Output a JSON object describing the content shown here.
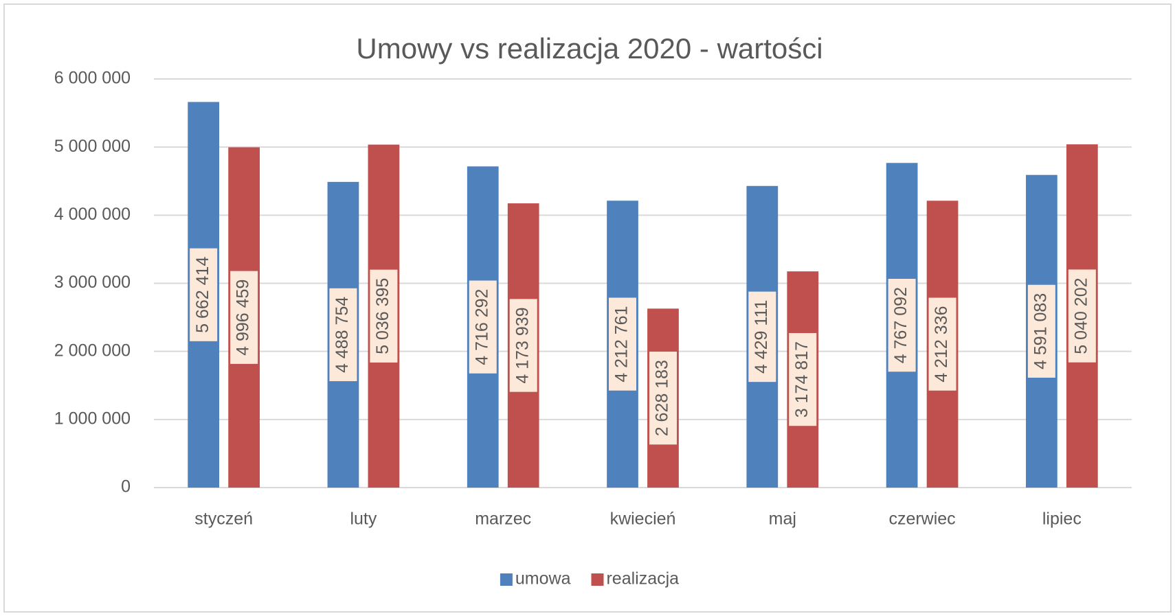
{
  "chart_data": {
    "type": "bar",
    "title": "Umowy vs realizacja 2020 - wartości",
    "categories": [
      "styczeń",
      "luty",
      "marzec",
      "kwiecień",
      "maj",
      "czerwiec",
      "lipiec"
    ],
    "series": [
      {
        "name": "umowa",
        "color": "#4f81bd",
        "values": [
          5662414,
          4488754,
          4716292,
          4212761,
          4429111,
          4767092,
          4591083
        ],
        "value_labels": [
          "5 662 414",
          "4 488 754",
          "4 716 292",
          "4 212 761",
          "4 429 111",
          "4 767 092",
          "4 591 083"
        ]
      },
      {
        "name": "realizacja",
        "color": "#c0504d",
        "values": [
          4996459,
          5036395,
          4173939,
          2628183,
          3174817,
          4212336,
          5040202
        ],
        "value_labels": [
          "4 996 459",
          "5 036 395",
          "4 173 939",
          "2 628 183",
          "3 174 817",
          "4 212 336",
          "5 040 202"
        ]
      }
    ],
    "ylim": [
      0,
      6000000
    ],
    "yticks": [
      0,
      {
        "value": 1000000,
        "label": "1 000 000"
      },
      {
        "value": 2000000,
        "label": "2 000 000"
      },
      {
        "value": 3000000,
        "label": "3 000 000"
      },
      {
        "value": 4000000,
        "label": "4 000 000"
      },
      {
        "value": 5000000,
        "label": "5 000 000"
      },
      {
        "value": 6000000,
        "label": "6 000 000"
      }
    ],
    "grid": true,
    "legend": "bottom",
    "label_background": "#fde9d9"
  }
}
